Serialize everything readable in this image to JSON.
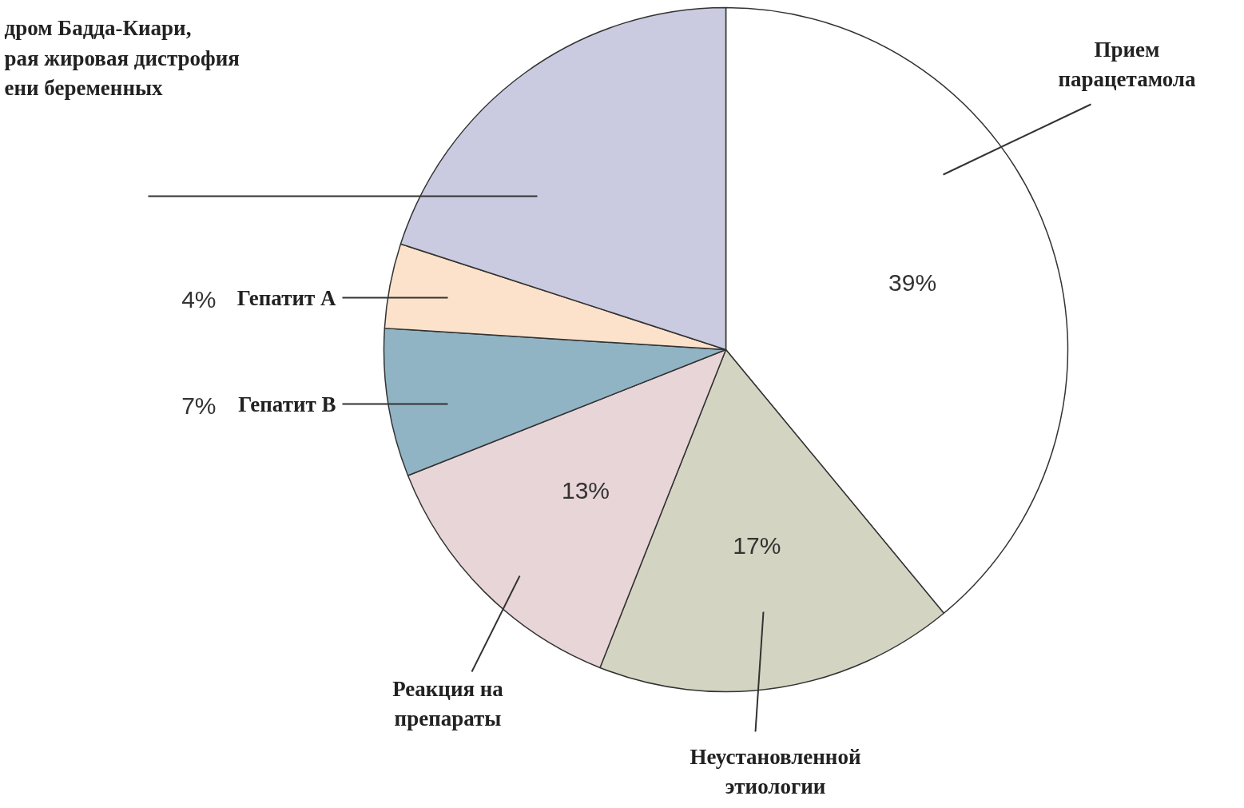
{
  "chart_data": {
    "type": "pie",
    "categories": [
      "Прием\nпарацетамола",
      "Неустановленной\nэтиологии",
      "Реакция на\nпрепараты",
      "Гепатит В",
      "Гепатит А",
      "дром Бадда-Киари,\nрая жировая дистрофия\nени беременных"
    ],
    "values": [
      39,
      17,
      13,
      7,
      4,
      20
    ],
    "value_labels": [
      "39%",
      "17%",
      "13%",
      "7%",
      "4%",
      null
    ],
    "colors": [
      "#ffffff",
      "#d4d4c2",
      "#e8d5d8",
      "#91b4c4",
      "#fde2cb",
      "#cacbe0"
    ]
  }
}
